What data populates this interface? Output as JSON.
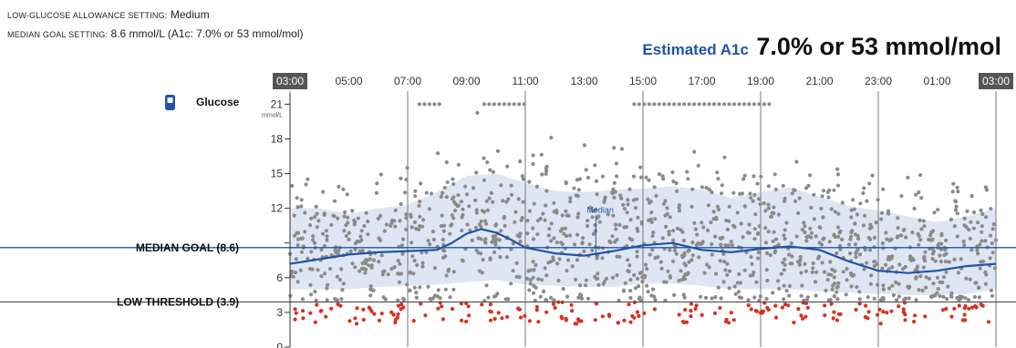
{
  "settings": {
    "low_glucose_label": "LOW-GLUCOSE ALLOWANCE SETTING:",
    "low_glucose_value": "Medium",
    "median_goal_label": "MEDIAN GOAL SETTING:",
    "median_goal_value": "8.6 mmol/L (A1c: 7.0% or 53 mmol/mol)"
  },
  "estimate": {
    "label": "Estimated A1c",
    "value": "7.0% or 53 mmol/mol"
  },
  "colors": {
    "median_line": "#1f55a5",
    "band_fill": "#dfe6f3",
    "point_normal": "#8a8a8a",
    "point_low": "#d8301f",
    "time_badge": "#555555"
  },
  "legend": {
    "icon": "glucose-meter-icon",
    "label": "Glucose"
  },
  "chart_data": {
    "type": "scatter",
    "x_ticks": [
      "03:00",
      "05:00",
      "07:00",
      "09:00",
      "11:00",
      "13:00",
      "15:00",
      "17:00",
      "19:00",
      "21:00",
      "23:00",
      "01:00",
      "03:00"
    ],
    "x_tick_hours": [
      0,
      2,
      4,
      6,
      8,
      10,
      12,
      14,
      16,
      18,
      20,
      22,
      24
    ],
    "highlighted_ticks": [
      0,
      12
    ],
    "y_ticks": [
      0,
      3,
      6,
      9,
      12,
      15,
      18,
      21
    ],
    "y_ticks_shown": [
      "0",
      "3",
      "6",
      "",
      "12",
      "15",
      "18",
      "21"
    ],
    "y_unit": "mmol/L",
    "ylim": [
      0,
      21.5
    ],
    "reference_lines": [
      {
        "label": "MEDIAN GOAL (8.6)",
        "value": 8.6
      },
      {
        "label": "LOW THRESHOLD (3.9)",
        "value": 3.9
      }
    ],
    "annotation": "Median",
    "median_series": {
      "x_hours": [
        0,
        1,
        2,
        3,
        4,
        5,
        5.5,
        6,
        6.5,
        7,
        7.5,
        8,
        9,
        10,
        11,
        12,
        13,
        14,
        15,
        16,
        17,
        18,
        19,
        20,
        21,
        22,
        23,
        24
      ],
      "y": [
        7.2,
        7.6,
        8.0,
        8.2,
        8.3,
        8.4,
        9.0,
        9.8,
        10.2,
        9.9,
        9.3,
        8.6,
        8.1,
        7.9,
        8.3,
        8.8,
        9.0,
        8.4,
        8.2,
        8.5,
        8.7,
        8.4,
        7.4,
        6.6,
        6.4,
        6.6,
        7.0,
        7.2
      ]
    },
    "band_series": {
      "x_hours": [
        0,
        1,
        2,
        3,
        4,
        5,
        6,
        7,
        8,
        9,
        10,
        11,
        12,
        13,
        14,
        15,
        16,
        17,
        18,
        19,
        20,
        21,
        22,
        23,
        24
      ],
      "upper": [
        12.0,
        12.0,
        11.5,
        12.0,
        12.3,
        13.4,
        14.8,
        15.0,
        14.2,
        13.5,
        13.4,
        13.6,
        13.7,
        13.9,
        13.6,
        12.9,
        13.4,
        13.8,
        13.0,
        12.2,
        11.8,
        11.3,
        10.8,
        11.3,
        12.0
      ],
      "lower": [
        5.0,
        5.0,
        5.0,
        5.2,
        5.3,
        5.4,
        5.6,
        5.8,
        5.4,
        5.3,
        5.2,
        5.2,
        5.5,
        5.5,
        5.3,
        5.0,
        5.0,
        5.0,
        4.8,
        4.7,
        4.6,
        4.5,
        4.5,
        4.6,
        5.0
      ]
    }
  }
}
